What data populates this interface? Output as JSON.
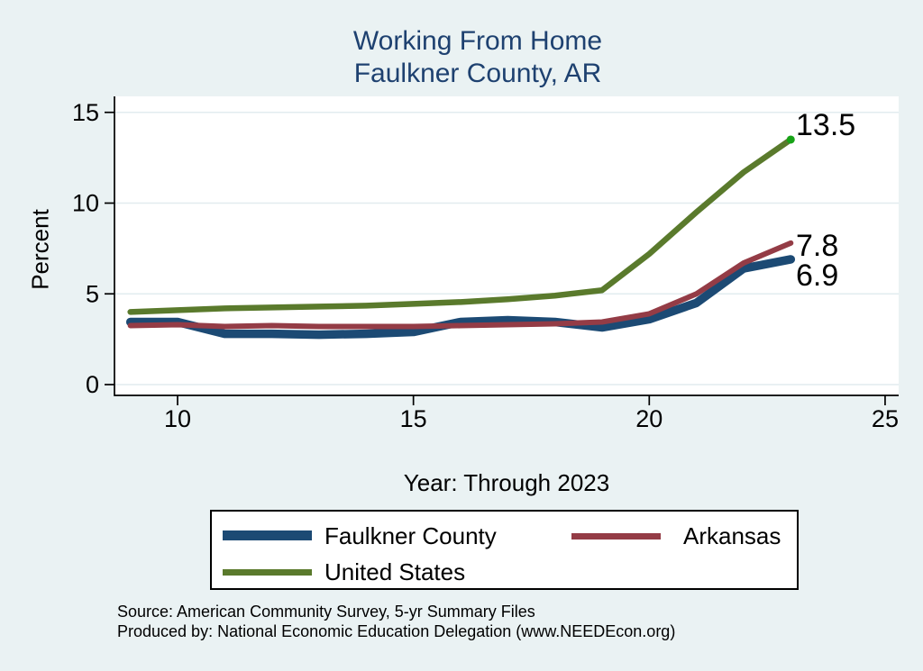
{
  "chart_data": {
    "type": "line",
    "title_line1": "Working From Home",
    "title_line2": "Faulkner County, AR",
    "title_color": "#1E4170",
    "ylabel": "Percent",
    "xlabel": "Year: Through 2023",
    "background": "#EAF2F3",
    "plot_background": "#FFFFFF",
    "grid_color": "#E2ECEF",
    "grid": true,
    "axis_color": "#000000",
    "xticks": [
      10,
      15,
      20,
      25
    ],
    "yticks": [
      0,
      5,
      10,
      15
    ],
    "xlim": [
      8.7,
      25.3
    ],
    "ylim": [
      0,
      15
    ],
    "x": [
      9,
      10,
      11,
      12,
      13,
      14,
      15,
      16,
      17,
      18,
      19,
      20,
      21,
      22,
      23
    ],
    "series": [
      {
        "name": "Faulkner County",
        "color": "#1C4A74",
        "width": 9.5,
        "end_label": "6.9",
        "values": [
          3.45,
          3.45,
          2.8,
          2.8,
          2.75,
          2.8,
          2.9,
          3.45,
          3.55,
          3.45,
          3.15,
          3.6,
          4.5,
          6.4,
          6.9
        ]
      },
      {
        "name": "Arkansas",
        "color": "#943C46",
        "width": 6,
        "end_label": "7.8",
        "values": [
          3.25,
          3.3,
          3.2,
          3.25,
          3.2,
          3.2,
          3.2,
          3.25,
          3.3,
          3.35,
          3.45,
          3.9,
          5.0,
          6.7,
          7.8
        ]
      },
      {
        "name": "United States",
        "color": "#5A7A2C",
        "width": 6.5,
        "end_label": "13.5",
        "endpoint_marker_color": "#17A317",
        "values": [
          4.0,
          4.1,
          4.2,
          4.25,
          4.3,
          4.35,
          4.45,
          4.55,
          4.7,
          4.9,
          5.2,
          7.2,
          9.5,
          11.7,
          13.5
        ]
      }
    ]
  },
  "footer": {
    "line1": "Source: American Community Survey, 5-yr Summary Files",
    "line2": "Produced by: National Economic Education Delegation (www.NEEDEcon.org)"
  }
}
